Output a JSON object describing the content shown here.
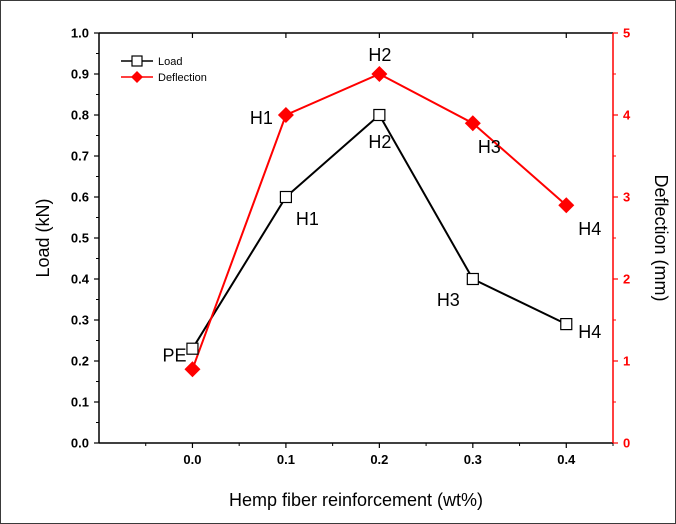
{
  "chart_data": {
    "type": "line",
    "title": "",
    "xlabel": "Hemp fiber reinforcement (wt%)",
    "ylabel_left": "Load (kN)",
    "ylabel_right": "Deflection (mm)",
    "xlim": [
      -0.1,
      0.45
    ],
    "ylim_left": [
      0.0,
      1.0
    ],
    "ylim_right": [
      0,
      5
    ],
    "x_ticks": [
      "0.0",
      "0.1",
      "0.2",
      "0.3",
      "0.4"
    ],
    "y_left_ticks": [
      "0.0",
      "0.1",
      "0.2",
      "0.3",
      "0.4",
      "0.5",
      "0.6",
      "0.7",
      "0.8",
      "0.9",
      "1.0"
    ],
    "y_right_ticks": [
      "0",
      "1",
      "2",
      "3",
      "4",
      "5"
    ],
    "legend_position": "top-left",
    "grid": false,
    "series": [
      {
        "name": "Load",
        "axis": "left",
        "color": "#000000",
        "marker": "open-square",
        "x": [
          0.0,
          0.1,
          0.2,
          0.3,
          0.4
        ],
        "y": [
          0.23,
          0.6,
          0.8,
          0.4,
          0.29
        ],
        "point_labels": [
          "PE",
          "H1",
          "H2",
          "H3",
          "H4"
        ]
      },
      {
        "name": "Deflection",
        "axis": "right",
        "color": "#ff0000",
        "marker": "filled-diamond",
        "x": [
          0.0,
          0.1,
          0.2,
          0.3,
          0.4
        ],
        "y": [
          0.9,
          4.0,
          4.5,
          3.9,
          2.9
        ],
        "point_labels": [
          "",
          "H1",
          "H2",
          "H3",
          "H4"
        ]
      }
    ]
  }
}
